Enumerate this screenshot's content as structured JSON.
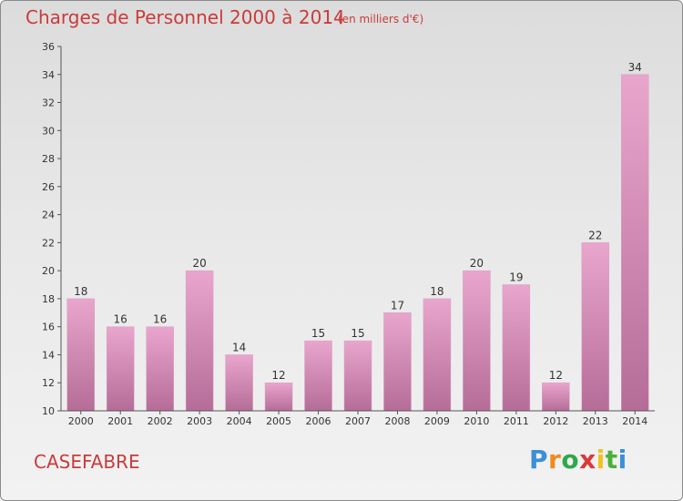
{
  "header": {
    "title": "Charges de Personnel 2000 à 2014",
    "unit": "(en milliers d'€)"
  },
  "footer": {
    "commune": "CASEFABRE"
  },
  "logo": {
    "letters": [
      "P",
      "r",
      "o",
      "x",
      "i",
      "t",
      "i"
    ]
  },
  "colors": {
    "bar_top": "#e9a6cd",
    "bar_bottom": "#b56d98",
    "text": "#ca3b3b"
  },
  "chart_data": {
    "type": "bar",
    "title": "Charges de Personnel 2000 à 2014",
    "subtitle": "(en milliers d'€)",
    "xlabel": "",
    "ylabel": "",
    "categories": [
      "2000",
      "2001",
      "2002",
      "2003",
      "2004",
      "2005",
      "2006",
      "2007",
      "2008",
      "2009",
      "2010",
      "2011",
      "2012",
      "2013",
      "2014"
    ],
    "values": [
      18,
      16,
      16,
      20,
      14,
      12,
      15,
      15,
      17,
      18,
      20,
      19,
      12,
      22,
      34
    ],
    "ylim": [
      10,
      36
    ],
    "yticks": [
      10,
      12,
      14,
      16,
      18,
      20,
      22,
      24,
      26,
      28,
      30,
      32,
      34,
      36
    ],
    "grid": false,
    "legend": "none"
  }
}
